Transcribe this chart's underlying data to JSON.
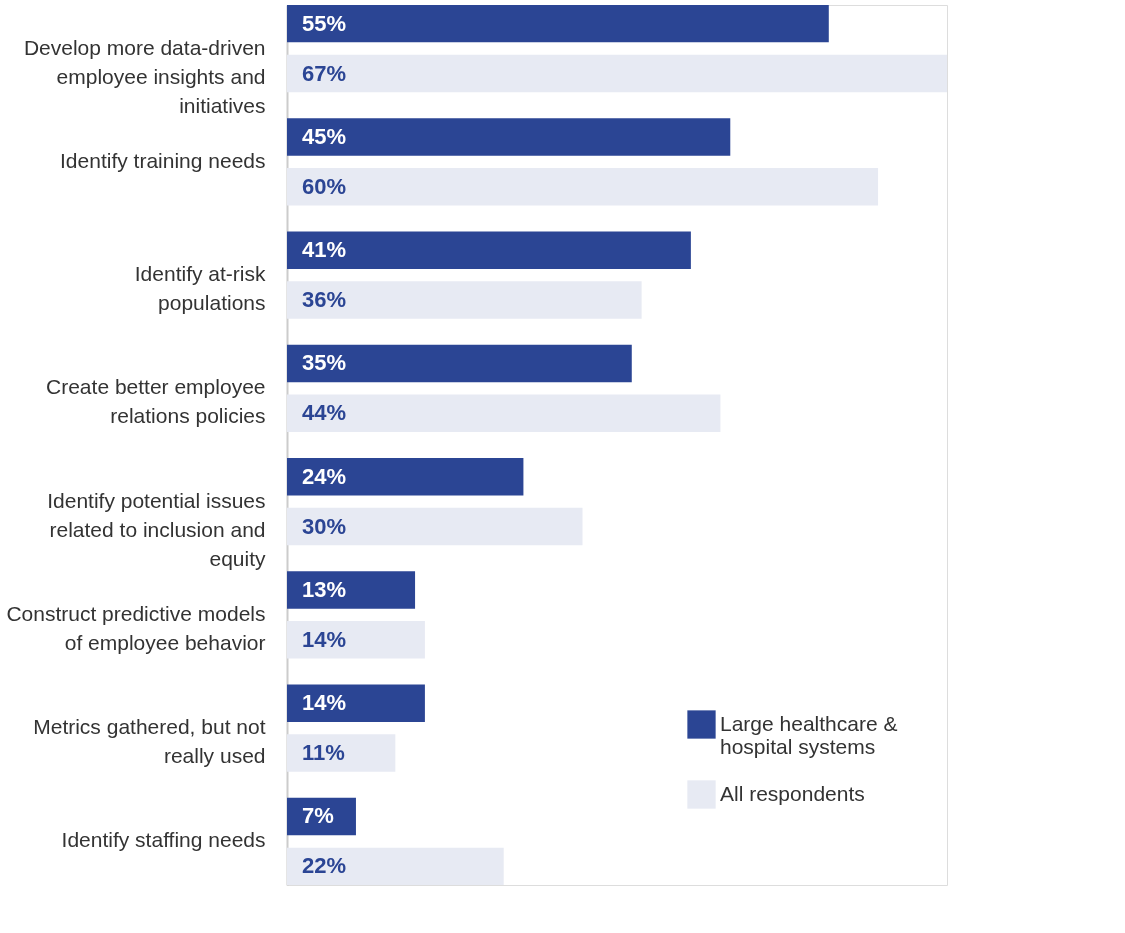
{
  "chart_data": {
    "type": "bar",
    "orientation": "horizontal",
    "categories": [
      "Develop more data-driven employee insights and initiatives",
      "Identify training needs",
      "Identify at-risk populations",
      "Create better employee relations policies",
      "Identify potential issues related to inclusion and equity",
      "Construct predictive models of employee behavior",
      "Metrics gathered, but not really used",
      "Identify staffing needs"
    ],
    "series": [
      {
        "name": "Large healthcare & hospital systems",
        "color": "#2b4594",
        "values": [
          55,
          45,
          41,
          35,
          24,
          13,
          14,
          7
        ],
        "value_labels": [
          "55%",
          "45%",
          "41%",
          "35%",
          "24%",
          "13%",
          "14%",
          "7%"
        ]
      },
      {
        "name": "All respondents",
        "color": "#e7eaf3",
        "values": [
          67,
          60,
          36,
          44,
          30,
          14,
          11,
          22
        ],
        "value_labels": [
          "67%",
          "60%",
          "36%",
          "44%",
          "30%",
          "14%",
          "11%",
          "22%"
        ]
      }
    ],
    "legend": "bottom right"
  }
}
